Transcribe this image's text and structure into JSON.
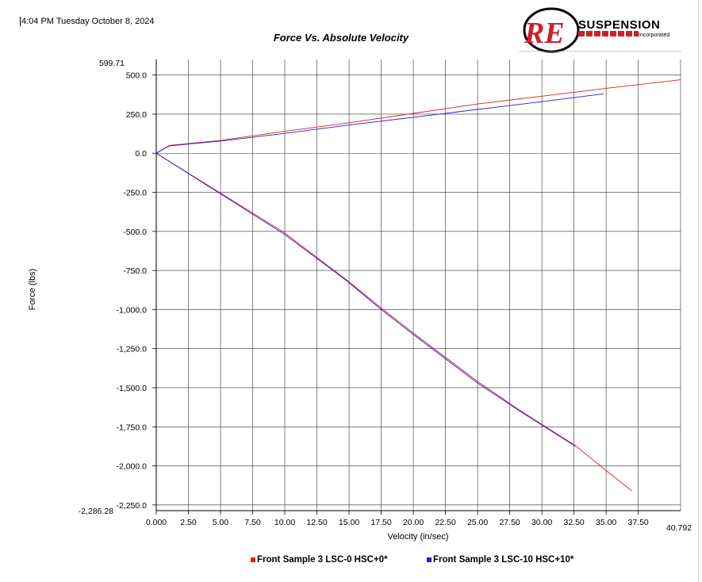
{
  "header": {
    "timestamp": "4:04 PM Tuesday October 8, 2024"
  },
  "logo": {
    "brand_letters": "RE",
    "brand_name": "SUSPENSION",
    "brand_sub": "Incorporated",
    "colors": {
      "red": "#d0202a",
      "black": "#000000"
    }
  },
  "chart_data": {
    "type": "line",
    "title": "Force Vs. Absolute Velocity",
    "xlabel": "Velocity (in/sec)",
    "ylabel": "Force (lbs)",
    "xlim": [
      0,
      40.792
    ],
    "ylim": [
      -2286.28,
      599.71
    ],
    "x_ticks": [
      0,
      2.5,
      5,
      7.5,
      10,
      12.5,
      15,
      17.5,
      20,
      22.5,
      25,
      27.5,
      30,
      32.5,
      35,
      37.5
    ],
    "x_tick_labels": [
      "0.000",
      "2.50",
      "5.00",
      "7.50",
      "10.00",
      "12.50",
      "15.00",
      "17.50",
      "20.00",
      "22.50",
      "25.00",
      "27.50",
      "30.00",
      "32.50",
      "35.00",
      "37.50"
    ],
    "x_max_label": "40.792",
    "y_ticks": [
      500,
      250,
      0,
      -250,
      -500,
      -750,
      -1000,
      -1250,
      -1500,
      -1750,
      -2000,
      -2250
    ],
    "y_tick_labels": [
      "500.0",
      "250.0",
      "0.0",
      "-250.0",
      "-500.0",
      "-750.0",
      "-1,000.0",
      "-1,250.0",
      "-1,500.0",
      "-1,750.0",
      "-2,000.0",
      "-2,250.0"
    ],
    "y_max_label": "599.71",
    "y_min_label": "-2,286.28",
    "grid": true,
    "legend_position": "bottom",
    "series": [
      {
        "name": "Front Sample 3 LSC-0 HSC+0*",
        "color": "#e02020",
        "rebound": [
          [
            0,
            0
          ],
          [
            1,
            50
          ],
          [
            5,
            82
          ],
          [
            10,
            140
          ],
          [
            15,
            195
          ],
          [
            20,
            255
          ],
          [
            25,
            315
          ],
          [
            30,
            365
          ],
          [
            35,
            415
          ],
          [
            40.8,
            470
          ]
        ],
        "compression": [
          [
            0,
            0
          ],
          [
            5,
            -255
          ],
          [
            10,
            -510
          ],
          [
            14.8,
            -810
          ],
          [
            17.5,
            -990
          ],
          [
            20,
            -1150
          ],
          [
            25,
            -1460
          ],
          [
            28.3,
            -1645
          ],
          [
            32.6,
            -1870
          ],
          [
            35,
            -2030
          ],
          [
            37,
            -2160
          ]
        ]
      },
      {
        "name": "Front Sample 3 LSC-10 HSC+10*",
        "color": "#2020e0",
        "rebound": [
          [
            0,
            0
          ],
          [
            1,
            47
          ],
          [
            5,
            78
          ],
          [
            10,
            127
          ],
          [
            15,
            180
          ],
          [
            20,
            230
          ],
          [
            25,
            280
          ],
          [
            30,
            330
          ],
          [
            34.8,
            380
          ]
        ],
        "compression": [
          [
            0,
            0
          ],
          [
            5,
            -260
          ],
          [
            10,
            -520
          ],
          [
            14.8,
            -815
          ],
          [
            17.5,
            -1000
          ],
          [
            20,
            -1160
          ],
          [
            25,
            -1470
          ],
          [
            28.3,
            -1650
          ],
          [
            32.6,
            -1875
          ]
        ]
      }
    ]
  }
}
